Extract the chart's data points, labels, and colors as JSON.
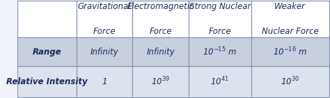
{
  "col_headers": [
    [
      "Gravitational",
      "Force"
    ],
    [
      "Electromagnetic",
      "Force"
    ],
    [
      "Strong Nuclear",
      "Force"
    ],
    [
      "Weaker",
      "Nuclear Force"
    ]
  ],
  "row_headers": [
    "Range",
    "Relative Intensity"
  ],
  "row1_data": [
    "Infinity",
    "Infinity",
    "10$^{-15}$ m",
    "10$^{-16}$ m"
  ],
  "row2_data": [
    "1",
    "10$^{39}$",
    "10$^{41}$",
    "10$^{30}$"
  ],
  "header_bg": "#ffffff",
  "row1_bg": "#c8d0e0",
  "row2_bg": "#dde3ee",
  "border_color": "#8090b0",
  "text_color": "#1a2a5a",
  "header_fontsize": 8.5,
  "cell_fontsize": 8.5,
  "row_header_fontsize": 8.5,
  "fig_bg": "#f0f4fa"
}
